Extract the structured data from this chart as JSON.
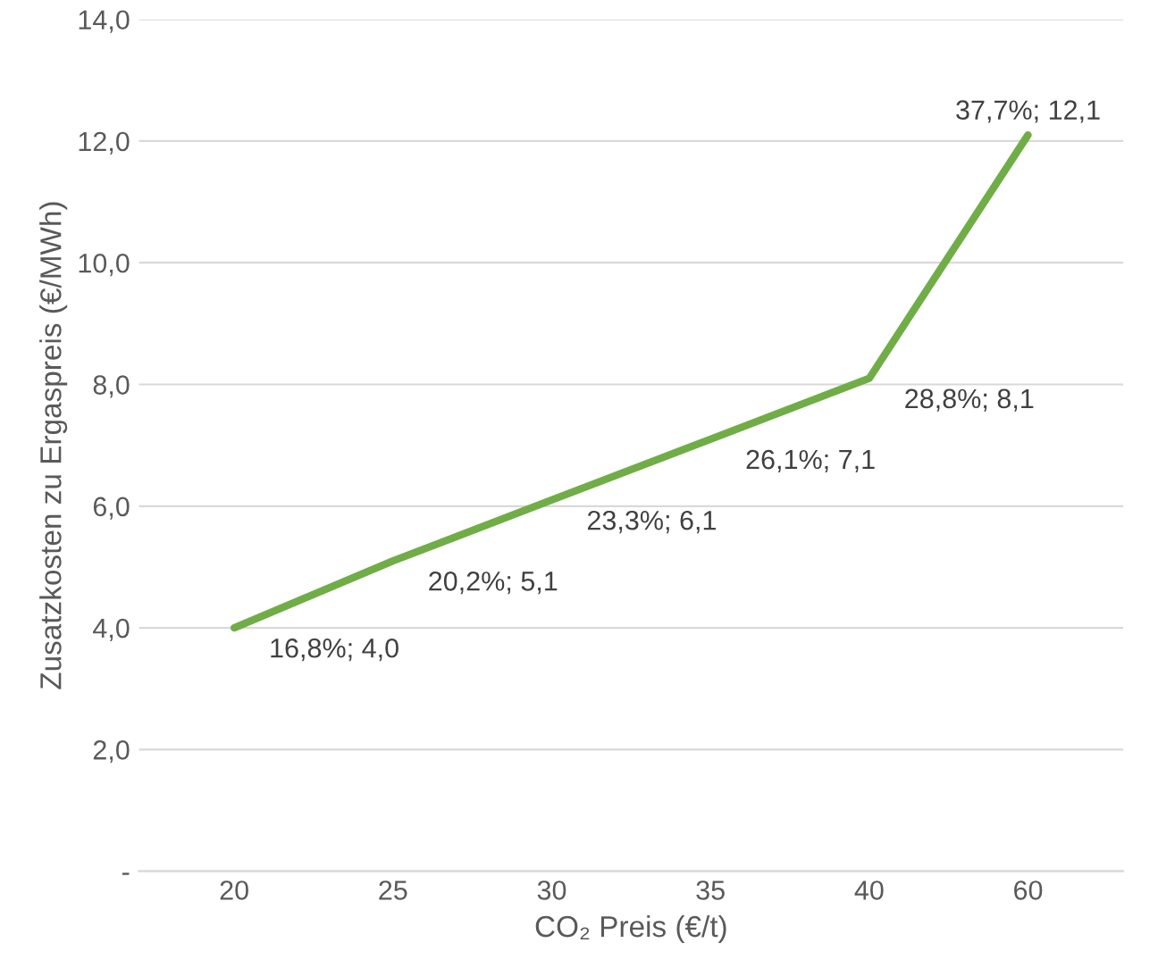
{
  "chart_data": {
    "type": "line",
    "xlabel": "CO₂ Preis (€/t)",
    "ylabel": "Zusatzkosten zu Ergaspreis (€/MWh)",
    "categories": [
      "20",
      "25",
      "30",
      "35",
      "40",
      "60"
    ],
    "series": [
      {
        "color": "#70ad47",
        "values": [
          4.0,
          5.1,
          6.1,
          7.1,
          8.1,
          12.1
        ],
        "value_labels": [
          "16,8%; 4,0",
          "20,2%; 5,1",
          "23,3%; 6,1",
          "26,1%; 7,1",
          "28,8%; 8,1",
          "37,7%; 12,1"
        ]
      }
    ],
    "ylim": [
      0,
      14
    ],
    "yticks": [
      {
        "value": 0,
        "label": "-"
      },
      {
        "value": 2,
        "label": "2,0"
      },
      {
        "value": 4,
        "label": "4,0"
      },
      {
        "value": 6,
        "label": "6,0"
      },
      {
        "value": 8,
        "label": "8,0"
      },
      {
        "value": 10,
        "label": "10,0"
      },
      {
        "value": 12,
        "label": "12,0"
      },
      {
        "value": 14,
        "label": "14,0"
      }
    ],
    "grid": "y",
    "legend": false,
    "marker": "none",
    "line_style": "solid"
  }
}
